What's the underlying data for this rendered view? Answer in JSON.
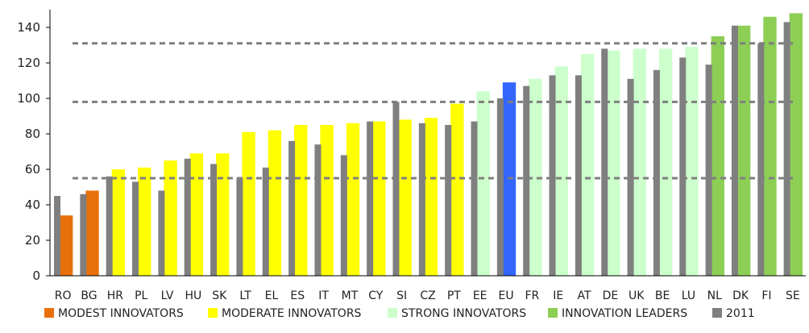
{
  "chart_data": {
    "type": "bar",
    "title": "",
    "xlabel": "",
    "ylabel": "",
    "ylim": [
      0,
      150
    ],
    "y_ticks": [
      0,
      20,
      40,
      60,
      80,
      100,
      120,
      140
    ],
    "grid": false,
    "legend_position": "bottom",
    "categories": [
      "RO",
      "BG",
      "HR",
      "PL",
      "LV",
      "HU",
      "SK",
      "LT",
      "EL",
      "ES",
      "IT",
      "MT",
      "CY",
      "SI",
      "CZ",
      "PT",
      "EE",
      "EU",
      "FR",
      "IE",
      "AT",
      "DE",
      "UK",
      "BE",
      "LU",
      "NL",
      "DK",
      "FI",
      "SE"
    ],
    "groups": [
      "modest",
      "modest",
      "moderate",
      "moderate",
      "moderate",
      "moderate",
      "moderate",
      "moderate",
      "moderate",
      "moderate",
      "moderate",
      "moderate",
      "moderate",
      "moderate",
      "moderate",
      "moderate",
      "strong",
      "eu",
      "strong",
      "strong",
      "strong",
      "strong",
      "strong",
      "strong",
      "strong",
      "leader",
      "leader",
      "leader",
      "leader"
    ],
    "series": [
      {
        "key": "current",
        "values": [
          34,
          48,
          60,
          61,
          65,
          69,
          69,
          81,
          82,
          85,
          85,
          86,
          87,
          88,
          89,
          97,
          104,
          109,
          111,
          118,
          125,
          127,
          128,
          128,
          129,
          135,
          141,
          146,
          148
        ]
      },
      {
        "name": "2011",
        "key": "2011",
        "values": [
          45,
          46,
          56,
          53,
          48,
          66,
          63,
          55,
          61,
          76,
          74,
          68,
          87,
          98,
          86,
          85,
          87,
          100,
          107,
          113,
          113,
          128,
          111,
          116,
          123,
          119,
          141,
          131,
          143
        ]
      }
    ],
    "reference_lines": [
      55,
      98,
      131
    ],
    "legend": [
      {
        "label": "MODEST INNOVATORS",
        "color": "#E8700A"
      },
      {
        "label": "MODERATE INNOVATORS",
        "color": "#FFFF00"
      },
      {
        "label": "STRONG INNOVATORS",
        "color": "#CCFFCC"
      },
      {
        "label": "INNOVATION LEADERS",
        "color": "#8DCF55"
      },
      {
        "label": "2011",
        "color": "#7F7F7F"
      }
    ],
    "colors": {
      "modest": "#E8700A",
      "moderate": "#FFFF00",
      "strong": "#CCFFCC",
      "leader": "#8DCF55",
      "eu": "#3366FF",
      "series_2011": "#7F7F7F",
      "reference_line": "#7F7F7F"
    }
  }
}
